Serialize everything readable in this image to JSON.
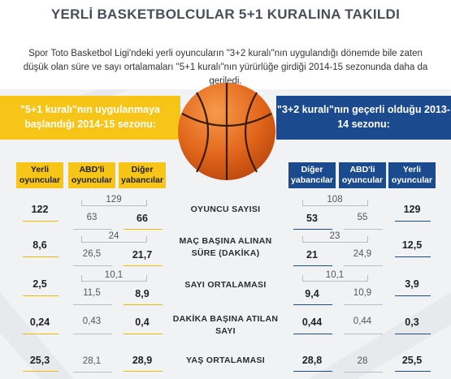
{
  "title": "YERLİ BASKETBOLCULAR 5+1 KURALINA TAKILDI",
  "intro": "Spor Toto Basketbol Ligi'ndeki yerli oyuncuların \"3+2 kuralı\"nın uygulandığı dönemde bile zaten düşük olan süre ve sayı ortalamaları \"5+1 kuralı\"nın yürürlüğe girdiği 2014-15 sezonunda daha da geriledi.",
  "colors": {
    "yellow": "#f7c418",
    "blue": "#1c4a8e"
  },
  "left_banner": "\"5+1 kuralı\"nın uygulanmaya başlandığı 2014-15 sezonu:",
  "right_banner": "\"3+2 kuralı\"nın geçerli olduğu 2013-14 sezonu:",
  "left_columns": [
    "Yerli oyuncular",
    "ABD'li oyuncular",
    "Diğer yabancılar"
  ],
  "right_columns": [
    "Diğer yabancılar",
    "ABD'li oyuncular",
    "Yerli oyuncular"
  ],
  "center_icon": "basketball-icon",
  "rows": [
    {
      "label": "OYUNCU SAYISI",
      "left": {
        "yerli": "122",
        "foreign_total": "129",
        "abd": "63",
        "diger": "66"
      },
      "right": {
        "foreign_total": "108",
        "diger": "53",
        "abd": "55",
        "yerli": "129"
      }
    },
    {
      "label": "MAÇ BAŞINA ALINAN SÜRE (DAKİKA)",
      "left": {
        "yerli": "8,6",
        "foreign_total": "24",
        "abd": "26,5",
        "diger": "21,7"
      },
      "right": {
        "foreign_total": "23",
        "diger": "21",
        "abd": "24,9",
        "yerli": "12,5"
      }
    },
    {
      "label": "SAYI ORTALAMASI",
      "left": {
        "yerli": "2,5",
        "foreign_total": "10,1",
        "abd": "11,5",
        "diger": "8,9"
      },
      "right": {
        "foreign_total": "10,1",
        "diger": "9,4",
        "abd": "10,9",
        "yerli": "3,9"
      }
    },
    {
      "label": "DAKİKA BAŞINA ATILAN SAYI",
      "left": {
        "yerli": "0,24",
        "abd": "0,43",
        "diger": "0,4"
      },
      "right": {
        "diger": "0,44",
        "abd": "0,44",
        "yerli": "0,3"
      }
    },
    {
      "label": "YAŞ ORTALAMASI",
      "left": {
        "yerli": "25,3",
        "abd": "28,1",
        "diger": "28,9"
      },
      "right": {
        "diger": "28,8",
        "abd": "28",
        "yerli": "25,5"
      }
    }
  ]
}
